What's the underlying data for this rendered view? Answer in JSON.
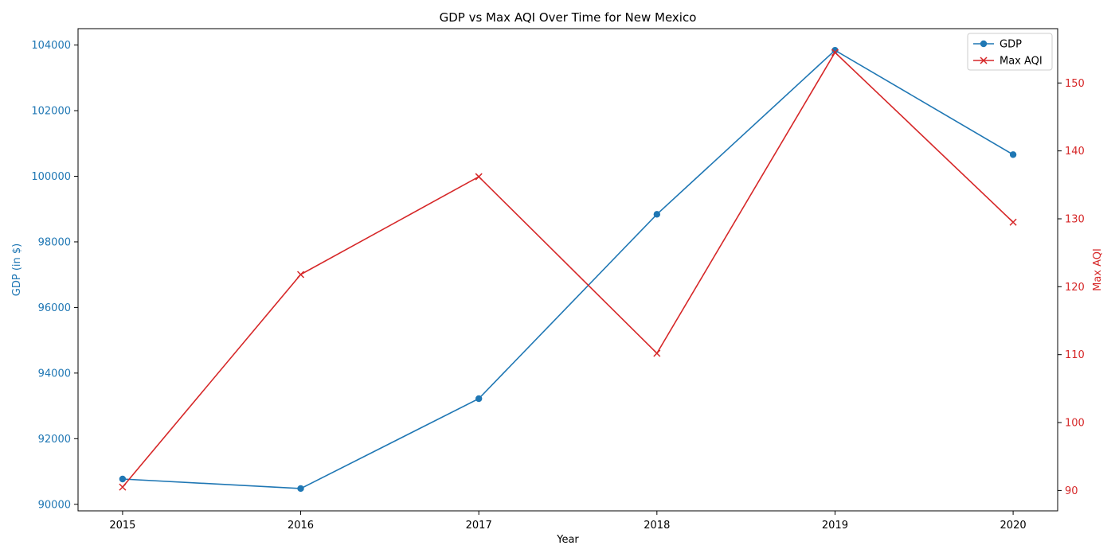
{
  "colors": {
    "gdp": "#1f77b4",
    "aqi": "#d62728",
    "axis": "#000000",
    "legend_border": "#cccccc"
  },
  "chart_data": {
    "type": "line",
    "title": "GDP vs Max AQI Over Time for New Mexico",
    "xlabel": "Year",
    "ylabel_left": "GDP (in $)",
    "ylabel_right": "Max AQI",
    "x": [
      2015,
      2016,
      2017,
      2018,
      2019,
      2020
    ],
    "xlim": [
      2014.75,
      2020.25
    ],
    "ylim_left": [
      89800,
      104500
    ],
    "ylim_right": [
      87,
      158
    ],
    "yticks_left": [
      90000,
      92000,
      94000,
      96000,
      98000,
      100000,
      102000,
      104000
    ],
    "yticks_right": [
      90,
      100,
      110,
      120,
      130,
      140,
      150
    ],
    "grid": false,
    "legend_position": "top-right",
    "series": [
      {
        "name": "GDP",
        "axis": "left",
        "marker": "circle",
        "values": [
          90770,
          90480,
          93220,
          98840,
          103840,
          100660
        ]
      },
      {
        "name": "Max AQI",
        "axis": "right",
        "marker": "x",
        "values": [
          90.5,
          121.8,
          136.2,
          110.2,
          154.5,
          129.5
        ]
      }
    ]
  }
}
